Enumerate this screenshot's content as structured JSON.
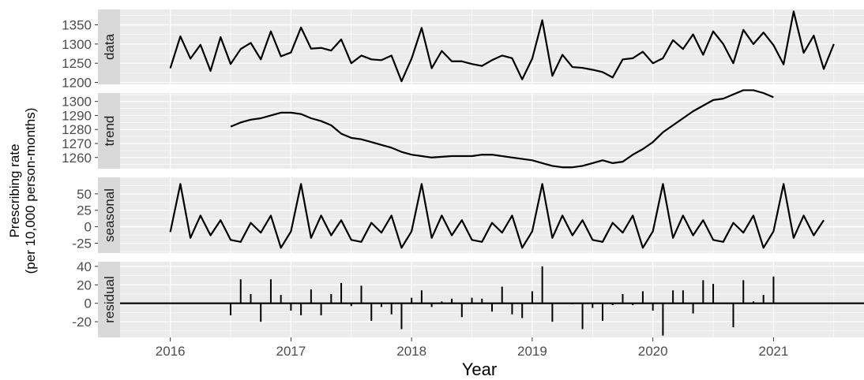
{
  "chart_data": {
    "type": "line",
    "xlabel": "Year",
    "ylabel_lines": [
      "Prescribing rate",
      "(per 10,000 person-months)"
    ],
    "x_ticks": [
      2016,
      2017,
      2018,
      2019,
      2020,
      2021
    ],
    "x_range": [
      "2015-08",
      "2021-10"
    ],
    "colors": {
      "panel_bg": "#ebebeb",
      "grid": "#ffffff",
      "strip_bg": "#d9d9d9",
      "line": "#000000"
    },
    "panels": [
      {
        "name": "data",
        "type": "line",
        "ylim": [
          1195,
          1390
        ],
        "y_ticks": [
          1200,
          1250,
          1300,
          1350
        ],
        "start": "2016-01",
        "values": [
          1237,
          1320,
          1262,
          1298,
          1230,
          1318,
          1248,
          1287,
          1303,
          1260,
          1333,
          1268,
          1278,
          1343,
          1288,
          1290,
          1283,
          1312,
          1250,
          1270,
          1260,
          1258,
          1270,
          1203,
          1262,
          1342,
          1237,
          1282,
          1255,
          1255,
          1248,
          1243,
          1258,
          1270,
          1263,
          1208,
          1262,
          1362,
          1217,
          1272,
          1240,
          1238,
          1233,
          1227,
          1213,
          1260,
          1263,
          1280,
          1250,
          1263,
          1310,
          1287,
          1325,
          1272,
          1333,
          1300,
          1250,
          1337,
          1300,
          1330,
          1297,
          1247,
          1385,
          1277,
          1322,
          1235,
          1300
        ]
      },
      {
        "name": "trend",
        "type": "line",
        "ylim": [
          1252,
          1306
        ],
        "y_ticks": [
          1260,
          1270,
          1280,
          1290,
          1300
        ],
        "start": "2016-07",
        "values": [
          1282,
          1285,
          1287,
          1288,
          1290,
          1292,
          1292,
          1291,
          1288,
          1286,
          1283,
          1277,
          1274,
          1273,
          1271,
          1269,
          1267,
          1264,
          1262,
          1261,
          1260,
          1260.5,
          1261,
          1261,
          1261,
          1262,
          1262,
          1261,
          1260,
          1259,
          1258,
          1256,
          1254,
          1253,
          1253,
          1254,
          1256,
          1258,
          1256,
          1257,
          1262,
          1266,
          1271,
          1278,
          1283,
          1288,
          1293,
          1297,
          1301,
          1302,
          1305,
          1308,
          1308,
          1306,
          1303
        ]
      },
      {
        "name": "seasonal",
        "type": "line",
        "ylim": [
          -40,
          75
        ],
        "y_ticks": [
          50,
          25,
          0,
          -25
        ],
        "start": "2016-01",
        "values": [
          -8,
          65,
          -17,
          17,
          -13,
          10,
          -20,
          -23,
          6,
          -9,
          17,
          -32,
          -7,
          65,
          -17,
          17,
          -13,
          10,
          -20,
          -23,
          6,
          -9,
          17,
          -32,
          -7,
          65,
          -17,
          17,
          -13,
          10,
          -20,
          -23,
          6,
          -9,
          17,
          -32,
          -7,
          65,
          -17,
          17,
          -13,
          10,
          -20,
          -23,
          6,
          -9,
          17,
          -32,
          -7,
          65,
          -17,
          17,
          -13,
          10,
          -20,
          -23,
          6,
          -9,
          17,
          -32,
          -7,
          65,
          -17,
          17,
          -13,
          10
        ]
      },
      {
        "name": "residual",
        "type": "bar",
        "ylim": [
          -37,
          45
        ],
        "y_ticks": [
          40,
          20,
          0,
          -20
        ],
        "start": "2016-07",
        "values": [
          -13,
          26,
          10,
          -20,
          26,
          9,
          -8,
          -13,
          15,
          -13,
          10,
          22,
          -3,
          19,
          -19,
          -4,
          -12,
          -28,
          6,
          14,
          -4,
          2,
          5,
          -15,
          6,
          5,
          -9,
          18,
          -12,
          -16,
          13,
          40,
          -20,
          0,
          -1,
          -28,
          -5,
          -19,
          -2,
          10,
          -2,
          13,
          -8,
          -35,
          14,
          14,
          -11,
          25,
          21,
          0,
          -26,
          25,
          2,
          9,
          29
        ]
      }
    ]
  }
}
